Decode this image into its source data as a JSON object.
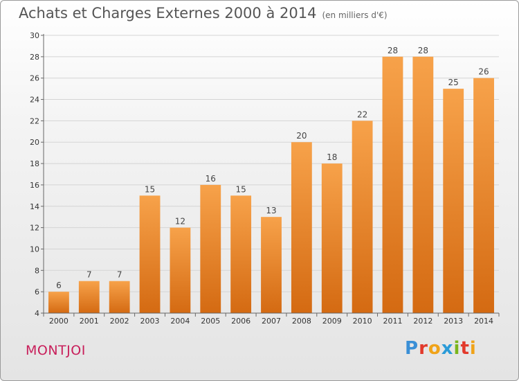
{
  "header": {
    "title": "Achats et Charges Externes 2000 à 2014",
    "subtitle": "(en milliers d'€)"
  },
  "commune": "MONTJOI",
  "brand": {
    "letters": [
      {
        "ch": "P",
        "color": "#3a8fd6"
      },
      {
        "ch": "r",
        "color": "#e2392b"
      },
      {
        "ch": "o",
        "color": "#f0a319"
      },
      {
        "ch": "x",
        "color": "#2b9bd8"
      },
      {
        "ch": "i",
        "color": "#7ab51d"
      },
      {
        "ch": "t",
        "color": "#e2392b"
      },
      {
        "ch": "i",
        "color": "#f0a319"
      }
    ]
  },
  "chart_data": {
    "type": "bar",
    "categories": [
      "2000",
      "2001",
      "2002",
      "2003",
      "2004",
      "2005",
      "2006",
      "2007",
      "2008",
      "2009",
      "2010",
      "2011",
      "2012",
      "2013",
      "2014"
    ],
    "values": [
      6,
      7,
      7,
      15,
      12,
      16,
      15,
      13,
      20,
      18,
      22,
      28,
      28,
      25,
      26
    ],
    "ylim": [
      4,
      30
    ],
    "yticks": [
      4,
      6,
      8,
      10,
      12,
      14,
      16,
      18,
      20,
      22,
      24,
      26,
      28,
      30
    ],
    "grid": true,
    "bar_color_top": "#f7a24a",
    "bar_color_bottom": "#d46a12"
  }
}
